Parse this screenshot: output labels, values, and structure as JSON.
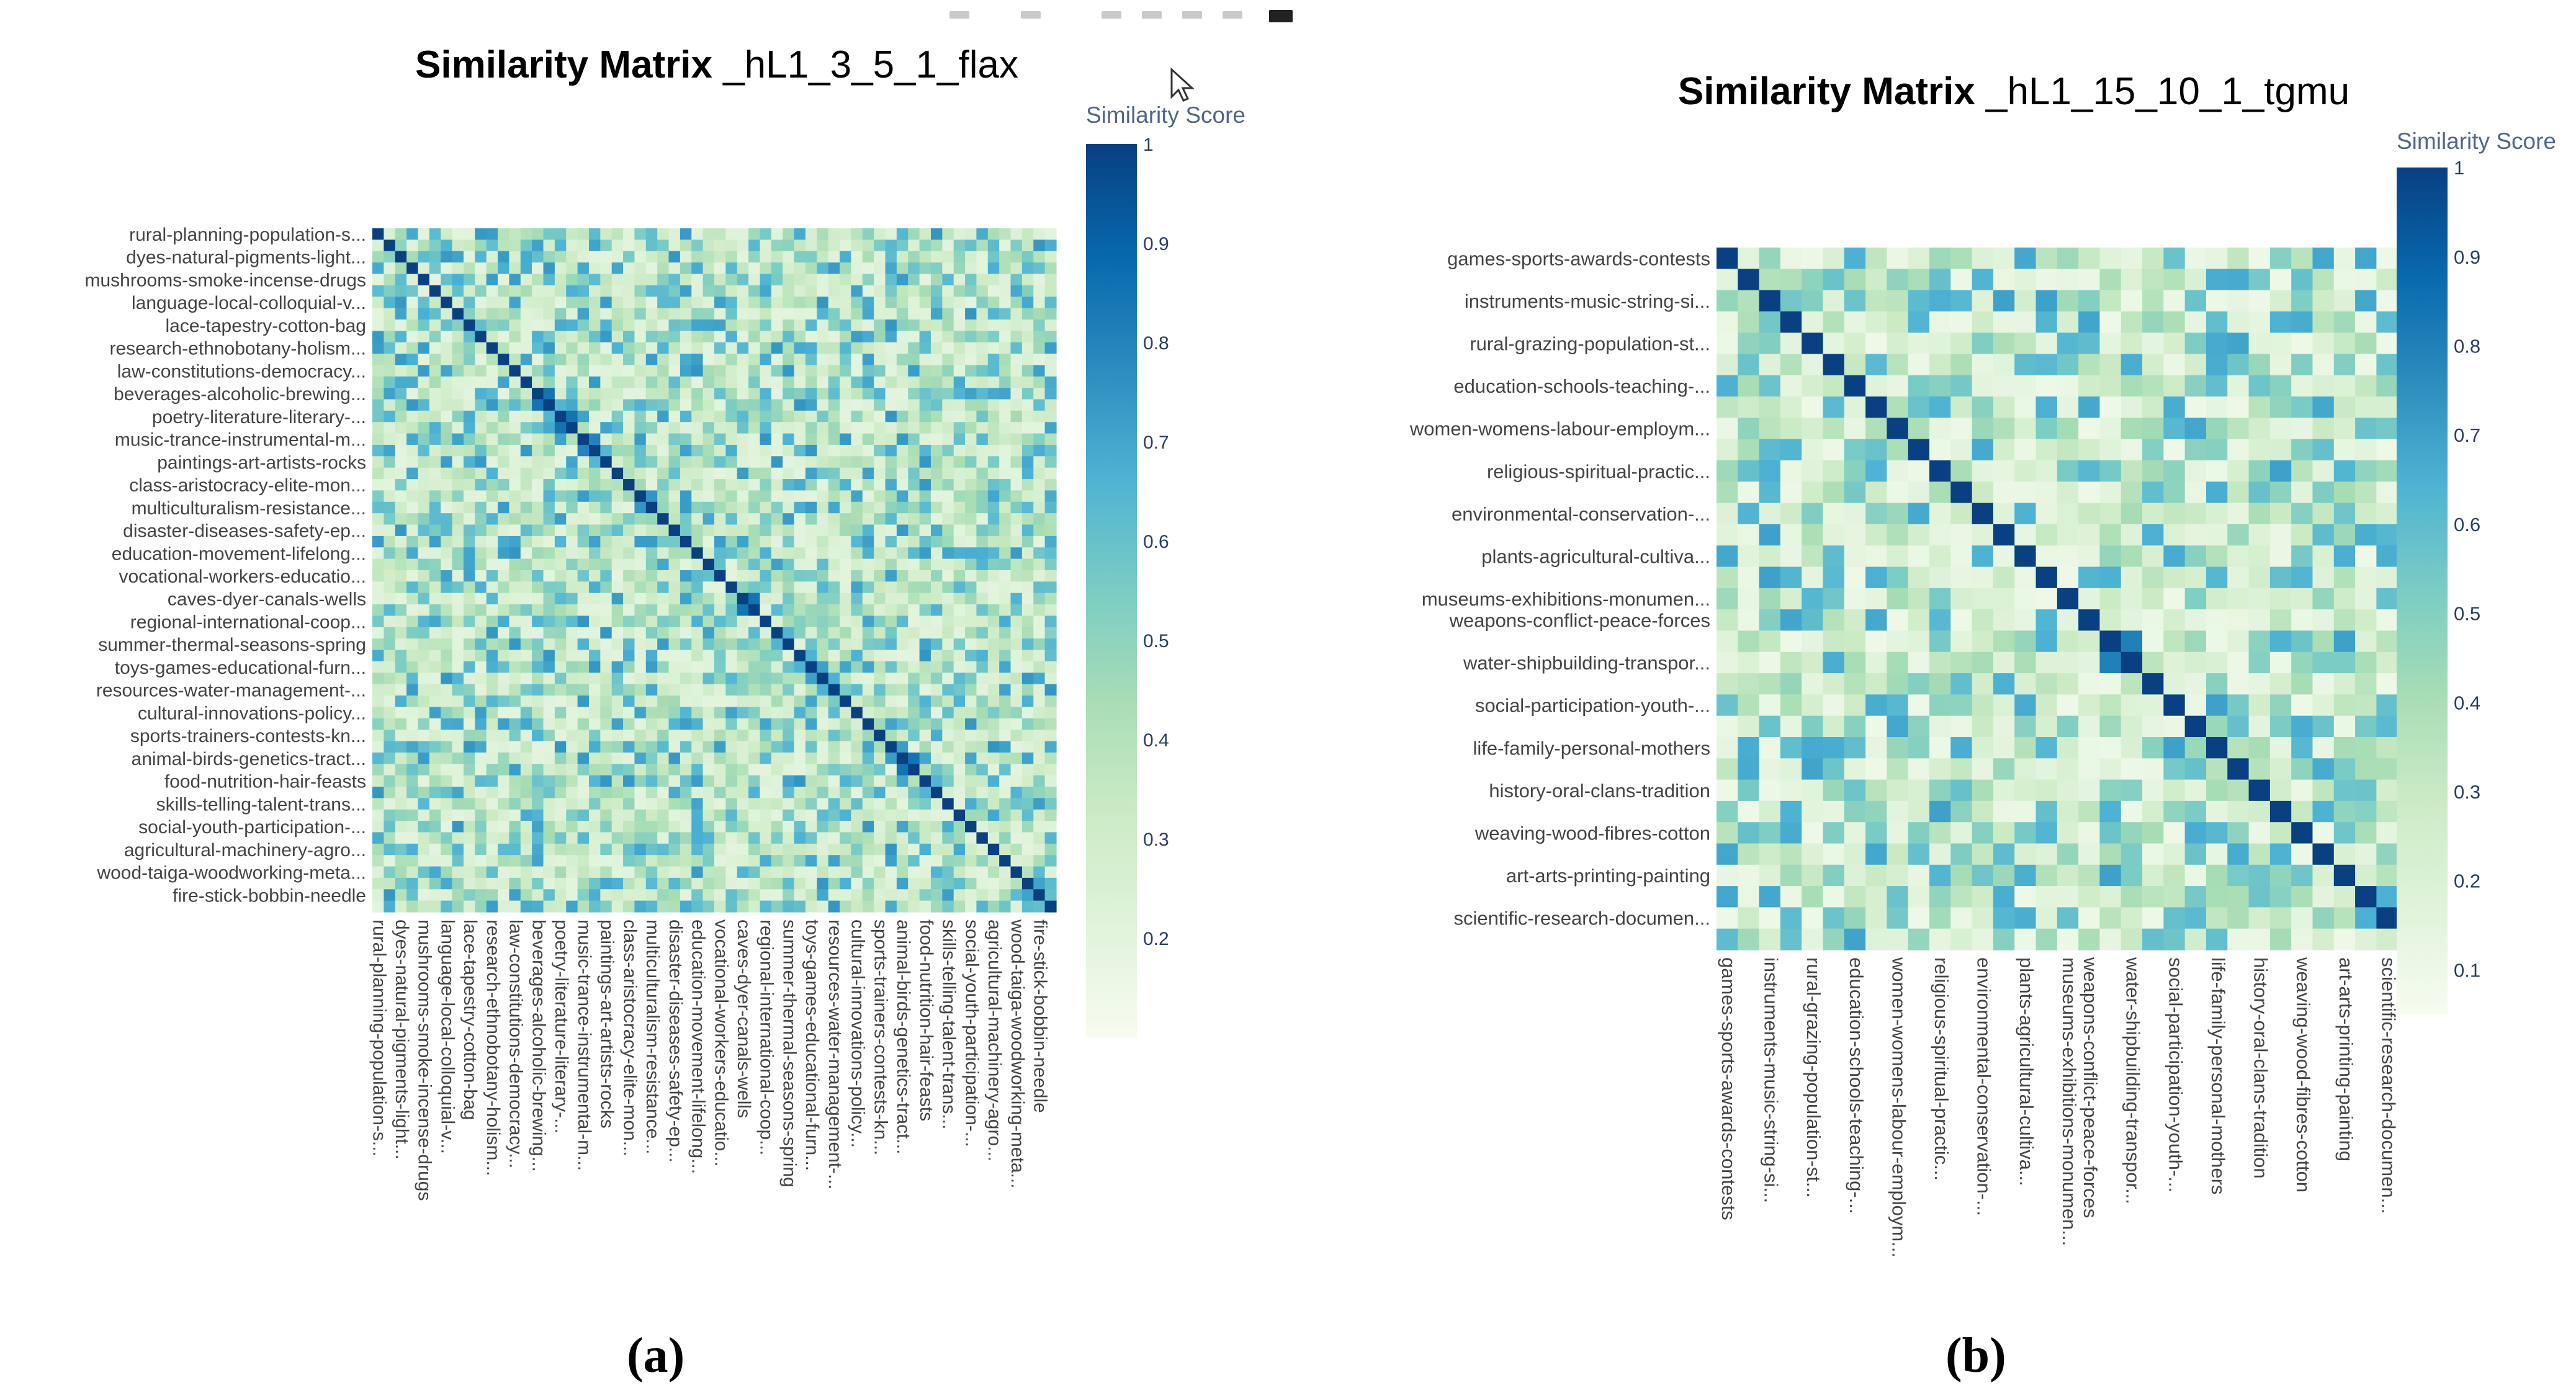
{
  "figure": {
    "caption_a": "(a)",
    "caption_b": "(b)"
  },
  "colors": {
    "scale": [
      "#f7fcf0",
      "#e0f3db",
      "#ccebc5",
      "#a8ddb5",
      "#7bccc4",
      "#4eb3d3",
      "#2b8cbe",
      "#0868ac",
      "#084081"
    ],
    "text": "#2a3f5f",
    "tick_text": "#444444",
    "colorbar_label": "#506784"
  },
  "chart_data": [
    {
      "type": "heatmap",
      "title_bold": "Similarity Matrix",
      "title_rest": " _hL1_3_5_1_flax",
      "colorbar_title": "Similarity Score",
      "colorscale": "GnBu",
      "zlim": [
        0.1,
        1
      ],
      "colorbar_ticks": [
        "1",
        "0.9",
        "0.8",
        "0.7",
        "0.6",
        "0.5",
        "0.4",
        "0.3",
        "0.2"
      ],
      "n": 60,
      "diagonal": 1,
      "off_diagonal_range": [
        0.2,
        0.75
      ],
      "tick_labels": [
        "rural-planning-population-s...",
        "dyes-natural-pigments-light...",
        "mushrooms-smoke-incense-drugs",
        "language-local-colloquial-v...",
        "lace-tapestry-cotton-bag",
        "research-ethnobotany-holism...",
        "law-constitutions-democracy...",
        "beverages-alcoholic-brewing...",
        "poetry-literature-literary-...",
        "music-trance-instrumental-m...",
        "paintings-art-artists-rocks",
        "class-aristocracy-elite-mon...",
        "multiculturalism-resistance...",
        "disaster-diseases-safety-ep...",
        "education-movement-lifelong...",
        "vocational-workers-educatio...",
        "caves-dyer-canals-wells",
        "regional-international-coop...",
        "summer-thermal-seasons-spring",
        "toys-games-educational-furn...",
        "resources-water-management-...",
        "cultural-innovations-policy...",
        "sports-trainers-contests-kn...",
        "animal-birds-genetics-tract...",
        "food-nutrition-hair-feasts",
        "skills-telling-talent-trans...",
        "social-youth-participation-...",
        "agricultural-machinery-agro...",
        "wood-taiga-woodworking-meta...",
        "fire-stick-bobbin-needle"
      ]
    },
    {
      "type": "heatmap",
      "title_bold": "Similarity Matrix",
      "title_rest": " _hL1_15_10_1_tgmu",
      "colorbar_title": "Similarity Score",
      "colorscale": "GnBu",
      "zlim": [
        0.05,
        1
      ],
      "colorbar_ticks": [
        "1",
        "0.9",
        "0.8",
        "0.7",
        "0.6",
        "0.5",
        "0.4",
        "0.3",
        "0.2",
        "0.1"
      ],
      "n": 33,
      "diagonal": 1,
      "off_diagonal_range": [
        0.1,
        0.7
      ],
      "tick_labels": [
        "games-sports-awards-contests",
        "instruments-music-string-si...",
        "rural-grazing-population-st...",
        "education-schools-teaching-...",
        "women-womens-labour-employm...",
        "religious-spiritual-practic...",
        "environmental-conservation-...",
        "plants-agricultural-cultiva...",
        "museums-exhibitions-monumen...",
        "weapons-conflict-peace-forces",
        "water-shipbuilding-transpor...",
        "social-participation-youth-...",
        "life-family-personal-mothers",
        "history-oral-clans-tradition",
        "weaving-wood-fibres-cotton",
        "art-arts-printing-painting",
        "scientific-research-documen..."
      ]
    }
  ]
}
